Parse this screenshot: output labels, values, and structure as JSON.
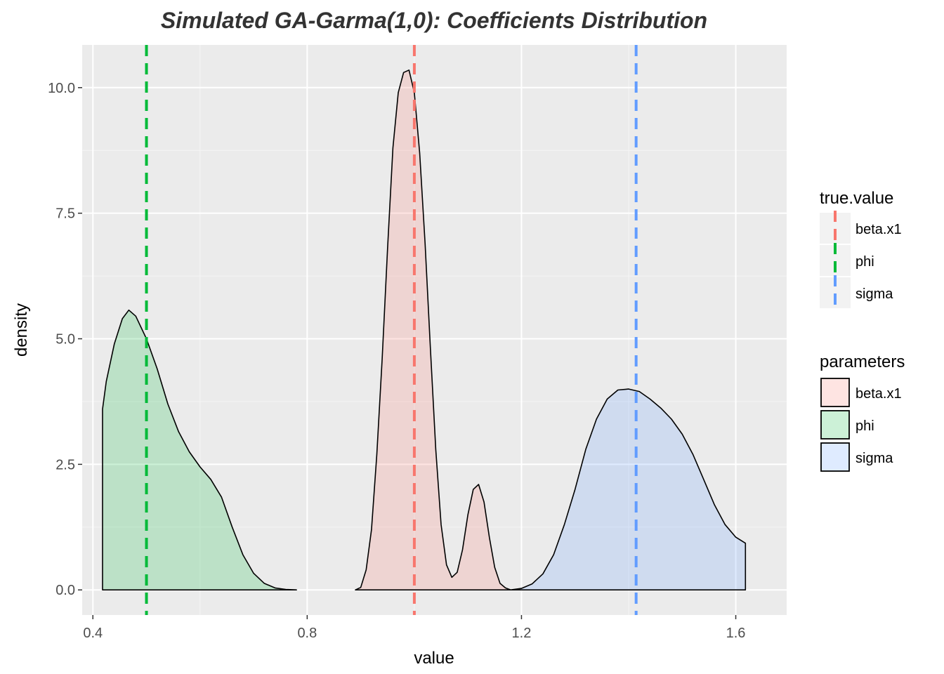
{
  "chart_data": {
    "type": "area",
    "title": "Simulated GA-Garma(1,0):   Coefficients Distribution",
    "xlabel": "value",
    "ylabel": "density",
    "xlim": [
      0.38,
      1.695
    ],
    "ylim": [
      -0.5,
      10.85
    ],
    "x_ticks": [
      0.4,
      0.8,
      1.2,
      1.6
    ],
    "x_tick_labels": [
      "0.4",
      "0.8",
      "1.2",
      "1.6"
    ],
    "y_ticks": [
      0.0,
      2.5,
      5.0,
      7.5,
      10.0
    ],
    "y_tick_labels": [
      "0.0",
      "2.5",
      "5.0",
      "7.5",
      "10.0"
    ],
    "grid": true,
    "series": [
      {
        "name": "beta.x1",
        "fill": "#f8766d",
        "points": [
          [
            0.89,
            0.0
          ],
          [
            0.9,
            0.05
          ],
          [
            0.91,
            0.4
          ],
          [
            0.92,
            1.2
          ],
          [
            0.93,
            2.7
          ],
          [
            0.94,
            4.6
          ],
          [
            0.95,
            6.8
          ],
          [
            0.96,
            8.8
          ],
          [
            0.97,
            9.9
          ],
          [
            0.98,
            10.3
          ],
          [
            0.99,
            10.35
          ],
          [
            1.0,
            9.9
          ],
          [
            1.01,
            8.7
          ],
          [
            1.02,
            6.9
          ],
          [
            1.03,
            4.8
          ],
          [
            1.04,
            2.8
          ],
          [
            1.05,
            1.3
          ],
          [
            1.06,
            0.5
          ],
          [
            1.07,
            0.25
          ],
          [
            1.08,
            0.35
          ],
          [
            1.09,
            0.8
          ],
          [
            1.1,
            1.5
          ],
          [
            1.11,
            2.0
          ],
          [
            1.12,
            2.1
          ],
          [
            1.13,
            1.75
          ],
          [
            1.14,
            1.05
          ],
          [
            1.15,
            0.45
          ],
          [
            1.16,
            0.13
          ],
          [
            1.17,
            0.04
          ],
          [
            1.18,
            0.0
          ]
        ]
      },
      {
        "name": "phi",
        "fill": "#00ba38",
        "points": [
          [
            0.418,
            0.0
          ],
          [
            0.418,
            3.6
          ],
          [
            0.425,
            4.15
          ],
          [
            0.44,
            4.9
          ],
          [
            0.455,
            5.4
          ],
          [
            0.467,
            5.57
          ],
          [
            0.48,
            5.45
          ],
          [
            0.5,
            5.0
          ],
          [
            0.52,
            4.4
          ],
          [
            0.54,
            3.7
          ],
          [
            0.56,
            3.15
          ],
          [
            0.58,
            2.75
          ],
          [
            0.6,
            2.45
          ],
          [
            0.62,
            2.2
          ],
          [
            0.64,
            1.85
          ],
          [
            0.66,
            1.25
          ],
          [
            0.68,
            0.7
          ],
          [
            0.7,
            0.33
          ],
          [
            0.72,
            0.13
          ],
          [
            0.74,
            0.04
          ],
          [
            0.76,
            0.01
          ],
          [
            0.78,
            0.0
          ]
        ]
      },
      {
        "name": "sigma",
        "fill": "#619cff",
        "points": [
          [
            1.18,
            0.0
          ],
          [
            1.2,
            0.03
          ],
          [
            1.22,
            0.12
          ],
          [
            1.24,
            0.32
          ],
          [
            1.26,
            0.7
          ],
          [
            1.28,
            1.3
          ],
          [
            1.3,
            2.0
          ],
          [
            1.32,
            2.8
          ],
          [
            1.34,
            3.4
          ],
          [
            1.36,
            3.8
          ],
          [
            1.38,
            3.98
          ],
          [
            1.4,
            4.0
          ],
          [
            1.42,
            3.95
          ],
          [
            1.44,
            3.8
          ],
          [
            1.46,
            3.62
          ],
          [
            1.48,
            3.4
          ],
          [
            1.5,
            3.1
          ],
          [
            1.52,
            2.7
          ],
          [
            1.54,
            2.2
          ],
          [
            1.56,
            1.7
          ],
          [
            1.58,
            1.3
          ],
          [
            1.6,
            1.05
          ],
          [
            1.618,
            0.93
          ],
          [
            1.618,
            0.0
          ]
        ]
      }
    ],
    "vlines": [
      {
        "name": "beta.x1",
        "x": 1.0,
        "color": "#f8766d"
      },
      {
        "name": "phi",
        "x": 0.5,
        "color": "#00ba38"
      },
      {
        "name": "sigma",
        "x": 1.414,
        "color": "#619cff"
      }
    ],
    "legend_placement": "right",
    "legends": [
      {
        "title": "true.value",
        "kind": "line",
        "entries": [
          "beta.x1",
          "phi",
          "sigma"
        ]
      },
      {
        "title": "parameters",
        "kind": "fill",
        "entries": [
          "beta.x1",
          "phi",
          "sigma"
        ]
      }
    ]
  }
}
